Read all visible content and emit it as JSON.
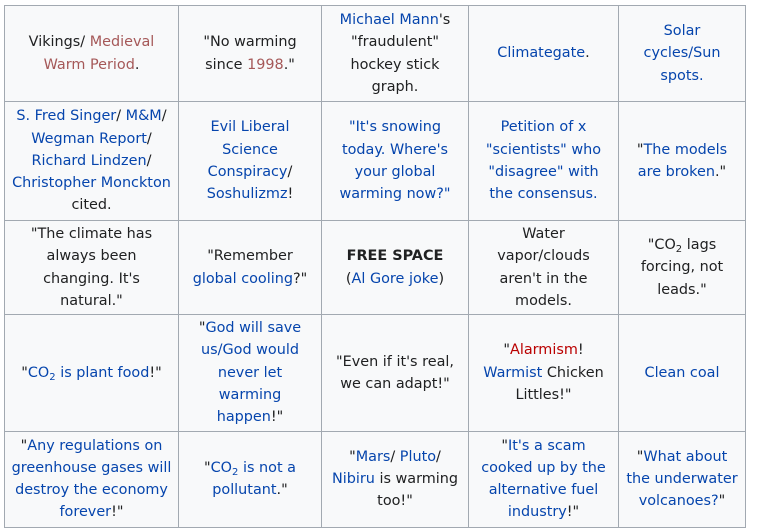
{
  "rows": [
    [
      {
        "parts": [
          {
            "t": "Vikings/ ",
            "c": "txt"
          },
          {
            "t": "Medieval Warm Period",
            "c": "vis"
          },
          {
            "t": ".",
            "c": "txt"
          }
        ]
      },
      {
        "parts": [
          {
            "t": "\"No warming since ",
            "c": "txt"
          },
          {
            "t": "1998",
            "c": "vis"
          },
          {
            "t": ".\"",
            "c": "txt"
          }
        ]
      },
      {
        "parts": [
          {
            "t": "Michael Mann",
            "c": "lnk"
          },
          {
            "t": "'s \"fraudulent\" hockey stick graph.",
            "c": "txt"
          }
        ]
      },
      {
        "parts": [
          {
            "t": "Climategate",
            "c": "lnk"
          },
          {
            "t": ".",
            "c": "txt"
          }
        ]
      },
      {
        "parts": [
          {
            "t": "Solar cycles/Sun spots.",
            "c": "lnk"
          }
        ]
      }
    ],
    [
      {
        "parts": [
          {
            "t": "S. Fred Singer",
            "c": "lnk"
          },
          {
            "t": "/ ",
            "c": "txt"
          },
          {
            "t": "M&M",
            "c": "lnk"
          },
          {
            "t": "/ ",
            "c": "txt"
          },
          {
            "t": "Wegman Report",
            "c": "lnk"
          },
          {
            "t": "/ ",
            "c": "txt"
          },
          {
            "t": "Richard Lindzen",
            "c": "lnk"
          },
          {
            "t": "/ ",
            "c": "txt"
          },
          {
            "t": "Christopher Monckton",
            "c": "lnk"
          },
          {
            "t": " cited.",
            "c": "txt"
          }
        ]
      },
      {
        "parts": [
          {
            "t": "Evil Liberal Science Conspiracy",
            "c": "lnk"
          },
          {
            "t": "/ ",
            "c": "txt"
          },
          {
            "t": "Soshulizmz",
            "c": "lnk"
          },
          {
            "t": "!",
            "c": "txt"
          }
        ]
      },
      {
        "parts": [
          {
            "t": "\"It's snowing today. Where's your global warming now?\"",
            "c": "lnk"
          }
        ]
      },
      {
        "parts": [
          {
            "t": "Petition of x \"scientists\" who \"disagree\" with the consensus.",
            "c": "lnk"
          }
        ]
      },
      {
        "parts": [
          {
            "t": "\"",
            "c": "txt"
          },
          {
            "t": "The models are broken",
            "c": "lnk"
          },
          {
            "t": ".\"",
            "c": "txt"
          }
        ]
      }
    ],
    [
      {
        "parts": [
          {
            "t": "\"The climate has always been changing. It's natural.\"",
            "c": "txt"
          }
        ]
      },
      {
        "parts": [
          {
            "t": "\"Remember ",
            "c": "txt"
          },
          {
            "t": "global cooling",
            "c": "lnk"
          },
          {
            "t": "?\"",
            "c": "txt"
          }
        ]
      },
      {
        "parts": [
          {
            "t": "FREE SPACE",
            "c": "free"
          },
          {
            "t": "(",
            "c": "txt"
          },
          {
            "t": "Al Gore joke",
            "c": "lnk"
          },
          {
            "t": ")",
            "c": "txt"
          }
        ],
        "break_after": 0
      },
      {
        "parts": [
          {
            "t": "Water vapor/clouds aren't in the models.",
            "c": "txt"
          }
        ]
      },
      {
        "parts": [
          {
            "t": "\"CO",
            "c": "txt"
          },
          {
            "t": "2",
            "c": "sub"
          },
          {
            "t": " lags forcing, not leads.\"",
            "c": "txt"
          }
        ]
      }
    ],
    [
      {
        "parts": [
          {
            "t": "\"",
            "c": "txt"
          },
          {
            "t": "CO",
            "c": "lnk"
          },
          {
            "t": "2",
            "c": "sublnk"
          },
          {
            "t": " is plant food",
            "c": "lnk"
          },
          {
            "t": "!\"",
            "c": "txt"
          }
        ]
      },
      {
        "parts": [
          {
            "t": "\"",
            "c": "txt"
          },
          {
            "t": "God will save us/God would never let warming happen",
            "c": "lnk"
          },
          {
            "t": "!\"",
            "c": "txt"
          }
        ]
      },
      {
        "parts": [
          {
            "t": "\"Even if it's real, we can adapt!\"",
            "c": "txt"
          }
        ]
      },
      {
        "parts": [
          {
            "t": "\"",
            "c": "txt"
          },
          {
            "t": "Alarmism",
            "c": "red"
          },
          {
            "t": "! ",
            "c": "txt"
          },
          {
            "t": "Warmist",
            "c": "lnk"
          },
          {
            "t": " Chicken Littles!\"",
            "c": "txt"
          }
        ]
      },
      {
        "parts": [
          {
            "t": "Clean coal",
            "c": "lnk"
          }
        ]
      }
    ],
    [
      {
        "parts": [
          {
            "t": "\"",
            "c": "txt"
          },
          {
            "t": "Any regulations on greenhouse gases will destroy the economy forever",
            "c": "lnk"
          },
          {
            "t": "!\"",
            "c": "txt"
          }
        ]
      },
      {
        "parts": [
          {
            "t": "\"",
            "c": "txt"
          },
          {
            "t": "CO",
            "c": "lnk"
          },
          {
            "t": "2",
            "c": "sublnk"
          },
          {
            "t": " is not a pollutant",
            "c": "lnk"
          },
          {
            "t": ".\"",
            "c": "txt"
          }
        ]
      },
      {
        "parts": [
          {
            "t": "\"",
            "c": "txt"
          },
          {
            "t": "Mars",
            "c": "lnk"
          },
          {
            "t": "/ ",
            "c": "txt"
          },
          {
            "t": "Pluto",
            "c": "lnk"
          },
          {
            "t": "/ ",
            "c": "txt"
          },
          {
            "t": "Nibiru",
            "c": "lnk"
          },
          {
            "t": " is warming too!\"",
            "c": "txt"
          }
        ]
      },
      {
        "parts": [
          {
            "t": "\"",
            "c": "txt"
          },
          {
            "t": "It's a scam cooked up by the alternative fuel industry",
            "c": "lnk"
          },
          {
            "t": "!\"",
            "c": "txt"
          }
        ]
      },
      {
        "parts": [
          {
            "t": "\"",
            "c": "txt"
          },
          {
            "t": "What about the underwater volcanoes?",
            "c": "lnk"
          },
          {
            "t": "\"",
            "c": "txt"
          }
        ]
      }
    ]
  ]
}
